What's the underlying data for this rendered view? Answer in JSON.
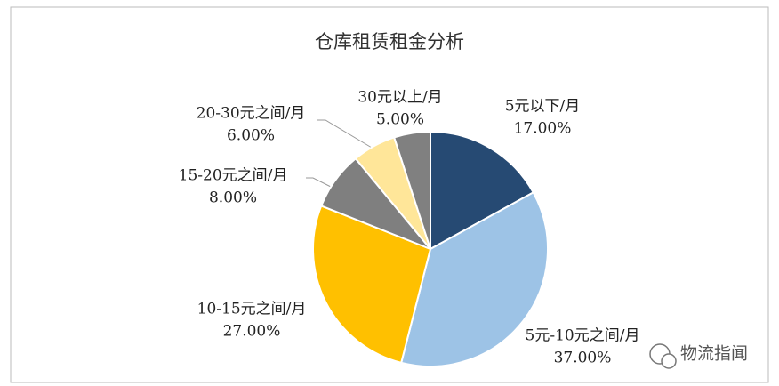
{
  "chart_data": {
    "type": "pie",
    "title": "仓库租赁租金分析",
    "categories": [
      "5元以下/月",
      "5元-10元之间/月",
      "10-15元之间/月",
      "15-20元之间/月",
      "20-30元之间/月",
      "30元以上/月"
    ],
    "values": [
      17,
      37,
      27,
      8,
      6,
      5
    ],
    "value_labels": [
      "17.00%",
      "37.00%",
      "27.00%",
      "8.00%",
      "6.00%",
      "5.00%"
    ],
    "colors": [
      "#264a73",
      "#9dc3e6",
      "#ffc000",
      "#7f7f7f",
      "#ffe699",
      "#808080"
    ]
  },
  "watermark": "物流指闻"
}
